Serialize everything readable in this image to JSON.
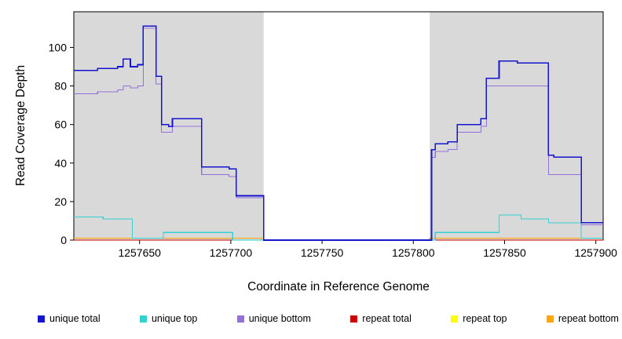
{
  "figure": {
    "background": "#ffffff",
    "panel": {
      "shade_color": "#d9d9d9",
      "border_color": "#000000"
    }
  },
  "chart_data": {
    "type": "line",
    "step": true,
    "title": "",
    "xlabel": "Coordinate in Reference Genome",
    "ylabel": "Read Coverage Depth",
    "xlim": [
      1257614,
      1257904
    ],
    "ylim": [
      0,
      118.5
    ],
    "x_ticks": [
      1257650,
      1257700,
      1257750,
      1257800,
      1257850,
      1257900
    ],
    "y_ticks": [
      0,
      20,
      40,
      60,
      80,
      100
    ],
    "grid": false,
    "shaded_x_regions": [
      [
        1257614,
        1257718
      ],
      [
        1257809,
        1257904
      ]
    ],
    "series": [
      {
        "name": "repeat top",
        "color": "#FFFF00",
        "lw": 1,
        "points": [
          [
            1257614,
            0
          ]
        ]
      },
      {
        "name": "repeat total",
        "color": "#CC0000",
        "lw": 1,
        "points": [
          [
            1257614,
            0
          ]
        ]
      },
      {
        "name": "repeat bottom",
        "color": "#FFA500",
        "lw": 1.4,
        "points": [
          [
            1257614,
            1
          ],
          [
            1257717,
            0
          ],
          [
            1257809,
            1
          ]
        ]
      },
      {
        "name": "unique top",
        "color": "#35D0D0",
        "lw": 1.1,
        "points": [
          [
            1257614,
            12
          ],
          [
            1257630,
            11
          ],
          [
            1257646,
            1
          ],
          [
            1257663,
            4
          ],
          [
            1257701,
            0
          ],
          [
            1257812,
            4
          ],
          [
            1257847,
            13
          ],
          [
            1257859,
            11
          ],
          [
            1257874,
            9
          ],
          [
            1257892,
            1
          ]
        ]
      },
      {
        "name": "unique bottom",
        "color": "#9370DB",
        "lw": 1.1,
        "points": [
          [
            1257614,
            76
          ],
          [
            1257627,
            77
          ],
          [
            1257638,
            78
          ],
          [
            1257641,
            80
          ],
          [
            1257645,
            79
          ],
          [
            1257649,
            80
          ],
          [
            1257652,
            110
          ],
          [
            1257659,
            81
          ],
          [
            1257662,
            56
          ],
          [
            1257668,
            59
          ],
          [
            1257684,
            34
          ],
          [
            1257699,
            33
          ],
          [
            1257703,
            22
          ],
          [
            1257718,
            0
          ],
          [
            1257810,
            43
          ],
          [
            1257812,
            46
          ],
          [
            1257819,
            47
          ],
          [
            1257824,
            56
          ],
          [
            1257837,
            59
          ],
          [
            1257840,
            80
          ],
          [
            1257874,
            34
          ],
          [
            1257892,
            8
          ]
        ]
      },
      {
        "name": "unique total",
        "color": "#1515CD",
        "lw": 1.6,
        "points": [
          [
            1257614,
            88
          ],
          [
            1257627,
            89
          ],
          [
            1257638,
            90
          ],
          [
            1257641,
            94
          ],
          [
            1257645,
            90
          ],
          [
            1257649,
            91
          ],
          [
            1257652,
            111
          ],
          [
            1257659,
            85
          ],
          [
            1257662,
            60
          ],
          [
            1257666,
            59
          ],
          [
            1257668,
            63
          ],
          [
            1257684,
            38
          ],
          [
            1257699,
            37
          ],
          [
            1257703,
            23
          ],
          [
            1257718,
            0
          ],
          [
            1257810,
            47
          ],
          [
            1257812,
            50
          ],
          [
            1257819,
            51
          ],
          [
            1257824,
            60
          ],
          [
            1257837,
            63
          ],
          [
            1257840,
            84
          ],
          [
            1257847,
            93
          ],
          [
            1257857,
            92
          ],
          [
            1257874,
            44
          ],
          [
            1257877,
            43
          ],
          [
            1257892,
            9
          ]
        ]
      }
    ],
    "legend": [
      {
        "label": "unique total",
        "color": "#1515CD"
      },
      {
        "label": "unique top",
        "color": "#35D0D0"
      },
      {
        "label": "unique bottom",
        "color": "#9370DB"
      },
      {
        "label": "repeat total",
        "color": "#CC0000"
      },
      {
        "label": "repeat top",
        "color": "#FFFF00"
      },
      {
        "label": "repeat bottom",
        "color": "#FFA500"
      }
    ],
    "legend_position": "bottom"
  }
}
